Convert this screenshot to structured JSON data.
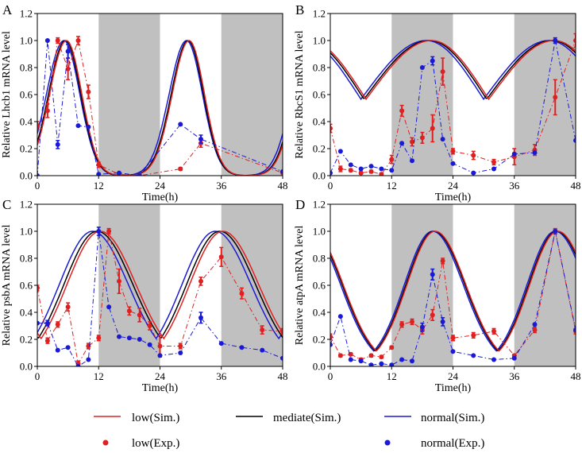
{
  "figure": {
    "legend": {
      "entries": [
        {
          "label": "low(Sim.)",
          "kind": "line",
          "color": "#e02020"
        },
        {
          "label": "mediate(Sim.)",
          "kind": "line",
          "color": "#000000"
        },
        {
          "label": "normal(Sim.)",
          "kind": "line",
          "color": "#1a1ad6"
        },
        {
          "label": "low(Exp.)",
          "kind": "dot",
          "color": "#e02020"
        },
        {
          "label": "normal(Exp.)",
          "kind": "dot",
          "color": "#1a1ad6"
        }
      ]
    },
    "colors": {
      "low": "#e02020",
      "mediate": "#000000",
      "normal": "#1a1ad6",
      "dark_band": "#c0c0c0"
    }
  },
  "chart_data": [
    {
      "panel_letter": "A",
      "type": "line",
      "ylabel": "Relative Lhcb1 mRNA level",
      "xlabel": "Time(h)",
      "xlim": [
        0,
        48
      ],
      "ylim": [
        0,
        1.2
      ],
      "xticks": [
        "0",
        "12",
        "24",
        "36",
        "48"
      ],
      "yticks": [
        "0.0",
        "0.2",
        "0.4",
        "0.6",
        "0.8",
        "1.0",
        "1.2"
      ],
      "dark_periods": [
        [
          12,
          24
        ],
        [
          36,
          48
        ]
      ],
      "sim": {
        "low": {
          "peak": 5.7,
          "width_rise": 3.3,
          "width_fall": 3.0
        },
        "mediate": {
          "peak": 5.5,
          "width_rise": 3.3,
          "width_fall": 3.0
        },
        "normal": {
          "peak": 5.2,
          "width_rise": 3.4,
          "width_fall": 3.1
        }
      },
      "series": [
        {
          "name": "low(Exp.)",
          "x": [
            0,
            2,
            4,
            6,
            8,
            10,
            12,
            16,
            20,
            28,
            32,
            48
          ],
          "y": [
            0.37,
            0.48,
            1.0,
            0.79,
            1.0,
            0.62,
            0.08,
            0.01,
            0.0,
            0.05,
            0.24,
            0.02
          ],
          "err": [
            0.03,
            0.05,
            0.02,
            0.08,
            0.03,
            0.05,
            0.02,
            0.0,
            0.0,
            0.01,
            0.03,
            0.0
          ]
        },
        {
          "name": "normal(Exp.)",
          "x": [
            0,
            2,
            4,
            6,
            8,
            10,
            12,
            16,
            20,
            28,
            32,
            48
          ],
          "y": [
            0.0,
            1.0,
            0.23,
            0.92,
            0.37,
            0.36,
            0.01,
            0.02,
            0.0,
            0.38,
            0.27,
            0.03
          ],
          "err": [
            0.0,
            0.0,
            0.03,
            0.05,
            0.0,
            0.0,
            0.0,
            0.0,
            0.0,
            0.0,
            0.03,
            0.0
          ]
        }
      ]
    },
    {
      "panel_letter": "B",
      "type": "line",
      "ylabel": "Relative RbcS1 mRNA level",
      "xlabel": "Time(h)",
      "xlim": [
        0,
        48
      ],
      "ylim": [
        0,
        1.2
      ],
      "xticks": [
        "0",
        "12",
        "24",
        "36",
        "48"
      ],
      "yticks": [
        "0.0",
        "0.2",
        "0.4",
        "0.6",
        "0.8",
        "1.0",
        "1.2"
      ],
      "dark_periods": [
        [
          12,
          24
        ],
        [
          36,
          48
        ]
      ],
      "sim": {
        "low": {
          "peak": 19.8,
          "width_rise": 12.0,
          "width_fall": 10.5
        },
        "mediate": {
          "peak": 19.4,
          "width_rise": 12.0,
          "width_fall": 10.5
        },
        "normal": {
          "peak": 18.8,
          "width_rise": 12.0,
          "width_fall": 10.5
        }
      },
      "series": [
        {
          "name": "low(Exp.)",
          "x": [
            0,
            2,
            4,
            6,
            8,
            10,
            12,
            14,
            16,
            18,
            20,
            22,
            24,
            28,
            32,
            36,
            40,
            44,
            48
          ],
          "y": [
            0.35,
            0.05,
            0.04,
            0.02,
            0.03,
            0.01,
            0.12,
            0.48,
            0.25,
            0.28,
            0.35,
            0.77,
            0.18,
            0.15,
            0.1,
            0.14,
            0.19,
            0.58,
            1.0
          ],
          "err": [
            0.03,
            0.02,
            0.01,
            0.01,
            0.01,
            0.01,
            0.03,
            0.04,
            0.03,
            0.04,
            0.1,
            0.1,
            0.02,
            0.03,
            0.02,
            0.06,
            0.04,
            0.13,
            0.05
          ]
        },
        {
          "name": "normal(Exp.)",
          "x": [
            0,
            2,
            4,
            6,
            8,
            10,
            12,
            14,
            16,
            18,
            20,
            22,
            24,
            28,
            32,
            36,
            40,
            44,
            48
          ],
          "y": [
            0.02,
            0.18,
            0.08,
            0.05,
            0.07,
            0.05,
            0.04,
            0.24,
            0.11,
            0.8,
            0.85,
            0.27,
            0.09,
            0.02,
            0.05,
            0.16,
            0.17,
            1.0,
            0.26
          ],
          "err": [
            0.0,
            0.0,
            0.0,
            0.0,
            0.0,
            0.0,
            0.0,
            0.0,
            0.0,
            0.0,
            0.03,
            0.0,
            0.0,
            0.0,
            0.0,
            0.0,
            0.0,
            0.02,
            0.0
          ]
        }
      ]
    },
    {
      "panel_letter": "C",
      "type": "line",
      "ylabel": "Relative psbA mRNA level",
      "xlabel": "Time(h)",
      "xlim": [
        0,
        48
      ],
      "ylim": [
        0,
        1.2
      ],
      "xticks": [
        "0",
        "12",
        "24",
        "36",
        "48"
      ],
      "yticks": [
        "0.0",
        "0.2",
        "0.4",
        "0.6",
        "0.8",
        "1.0",
        "1.2"
      ],
      "dark_periods": [
        [
          12,
          24
        ],
        [
          36,
          48
        ]
      ],
      "sim": {
        "low": {
          "peak": 12.3,
          "width_rise": 6.5,
          "width_fall": 7.0
        },
        "mediate": {
          "peak": 11.7,
          "width_rise": 6.5,
          "width_fall": 7.0
        },
        "normal": {
          "peak": 10.8,
          "width_rise": 6.5,
          "width_fall": 7.0
        }
      },
      "series": [
        {
          "name": "low(Exp.)",
          "x": [
            0,
            2,
            4,
            6,
            8,
            10,
            12,
            14,
            16,
            18,
            20,
            22,
            24,
            28,
            32,
            36,
            40,
            44,
            48
          ],
          "y": [
            0.58,
            0.19,
            0.31,
            0.44,
            0.02,
            0.15,
            0.21,
            1.0,
            0.63,
            0.41,
            0.38,
            0.3,
            0.15,
            0.15,
            0.63,
            0.81,
            0.54,
            0.27,
            0.26
          ],
          "err": [
            0.02,
            0.02,
            0.02,
            0.03,
            0.02,
            0.02,
            0.02,
            0.02,
            0.09,
            0.03,
            0.05,
            0.03,
            0.08,
            0.02,
            0.03,
            0.07,
            0.04,
            0.03,
            0.02
          ]
        },
        {
          "name": "normal(Exp.)",
          "x": [
            0,
            2,
            4,
            6,
            8,
            10,
            12,
            14,
            16,
            18,
            20,
            22,
            24,
            28,
            32,
            36,
            40,
            44,
            48
          ],
          "y": [
            0.32,
            0.32,
            0.12,
            0.14,
            0.0,
            0.05,
            1.0,
            0.44,
            0.22,
            0.21,
            0.2,
            0.16,
            0.08,
            0.1,
            0.36,
            0.17,
            0.14,
            0.12,
            0.06
          ],
          "err": [
            0.0,
            0.02,
            0.0,
            0.0,
            0.0,
            0.0,
            0.03,
            0.0,
            0.0,
            0.0,
            0.0,
            0.0,
            0.0,
            0.0,
            0.04,
            0.0,
            0.0,
            0.0,
            0.0
          ]
        }
      ]
    },
    {
      "panel_letter": "D",
      "type": "line",
      "ylabel": "Relative atpA mRNA level",
      "xlabel": "Time(h)",
      "xlim": [
        0,
        48
      ],
      "ylim": [
        0,
        1.2
      ],
      "xticks": [
        "0",
        "12",
        "24",
        "36",
        "48"
      ],
      "yticks": [
        "0.0",
        "0.2",
        "0.4",
        "0.6",
        "0.8",
        "1.0",
        "1.2"
      ],
      "dark_periods": [
        [
          12,
          24
        ],
        [
          36,
          48
        ]
      ],
      "sim": {
        "low": {
          "peak": 20.5,
          "width_rise": 5.5,
          "width_fall": 6.0
        },
        "mediate": {
          "peak": 20.3,
          "width_rise": 5.5,
          "width_fall": 6.0
        },
        "normal": {
          "peak": 20.0,
          "width_rise": 5.5,
          "width_fall": 6.0
        }
      },
      "series": [
        {
          "name": "low(Exp.)",
          "x": [
            0,
            2,
            4,
            6,
            8,
            10,
            12,
            14,
            16,
            18,
            20,
            22,
            24,
            28,
            32,
            36,
            40,
            44,
            48
          ],
          "y": [
            0.22,
            0.08,
            0.09,
            0.05,
            0.08,
            0.07,
            0.14,
            0.31,
            0.33,
            0.27,
            0.38,
            0.78,
            0.21,
            0.23,
            0.26,
            0.08,
            0.27,
            1.0,
            0.26
          ],
          "err": [
            0.02,
            0.01,
            0.01,
            0.01,
            0.01,
            0.01,
            0.01,
            0.02,
            0.02,
            0.03,
            0.04,
            0.02,
            0.02,
            0.02,
            0.02,
            0.01,
            0.02,
            0.02,
            0.02
          ]
        },
        {
          "name": "normal(Exp.)",
          "x": [
            0,
            2,
            4,
            6,
            8,
            10,
            12,
            14,
            16,
            18,
            20,
            22,
            24,
            28,
            32,
            36,
            40,
            44,
            48
          ],
          "y": [
            0.16,
            0.37,
            0.05,
            0.04,
            0.01,
            0.02,
            0.01,
            0.05,
            0.04,
            0.29,
            0.68,
            0.33,
            0.11,
            0.08,
            0.05,
            0.06,
            0.31,
            1.0,
            0.27
          ],
          "err": [
            0.0,
            0.0,
            0.0,
            0.0,
            0.0,
            0.0,
            0.0,
            0.0,
            0.0,
            0.03,
            0.04,
            0.03,
            0.0,
            0.0,
            0.0,
            0.0,
            0.0,
            0.01,
            0.0
          ]
        }
      ]
    }
  ]
}
